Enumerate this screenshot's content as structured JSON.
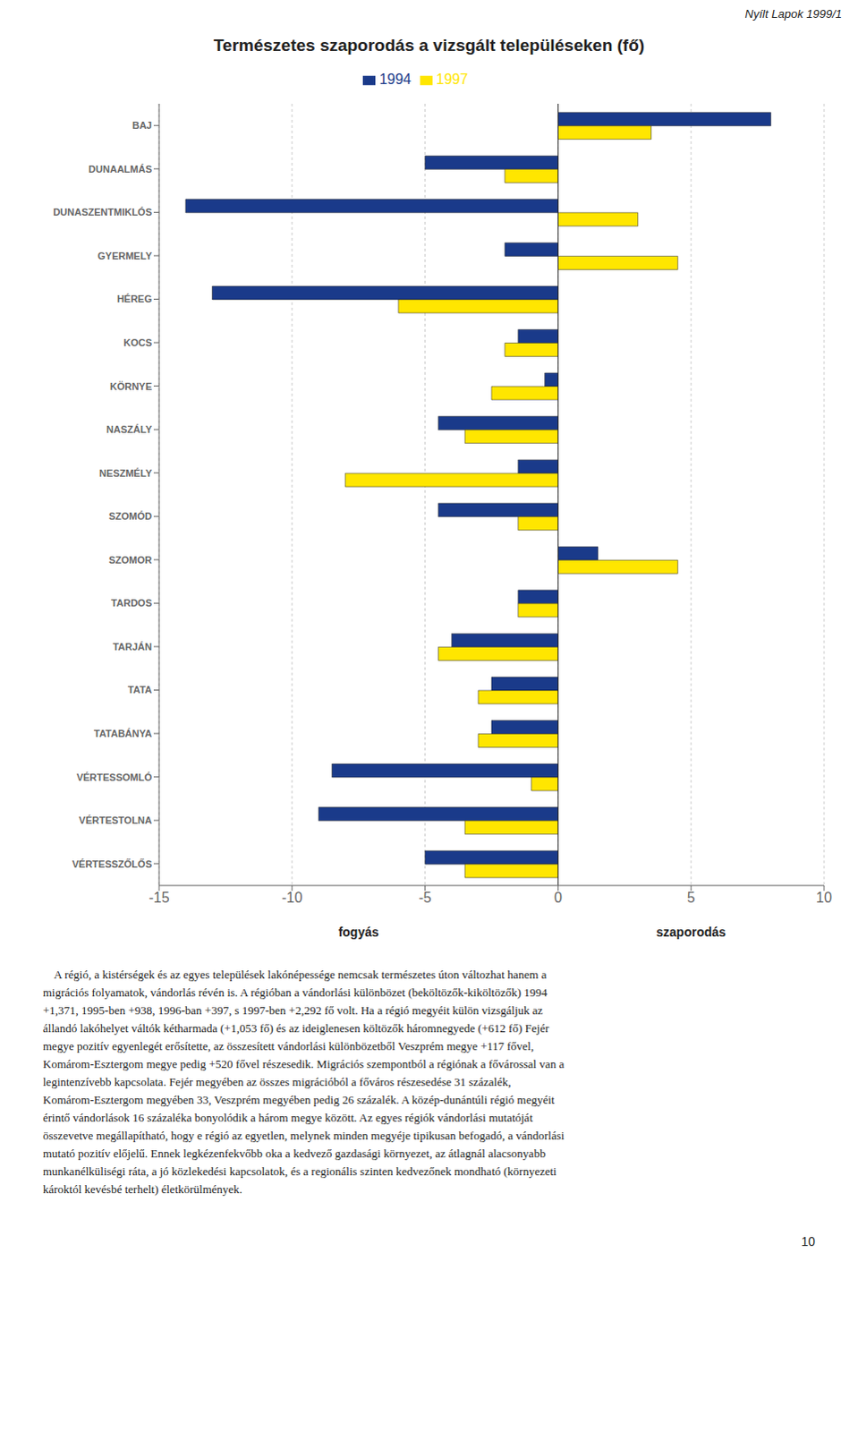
{
  "chart_data": {
    "type": "bar",
    "orientation": "horizontal",
    "title": "Természetes szaporodás a vizsgált településeken (fő)",
    "subtitle": "Nyílt Lapok 1999/1",
    "categories": [
      "BAJ",
      "DUNAALMÁS",
      "DUNASZENTMIKLÓS",
      "GYERMELY",
      "HÉREG",
      "KOCS",
      "KÖRNYE",
      "NASZÁLY",
      "NESZMÉLY",
      "SZOMÓD",
      "SZOMOR",
      "TARDOS",
      "TARJÁN",
      "TATA",
      "TATABÁNYA",
      "VÉRTESSOMLÓ",
      "VÉRTESTOLNA",
      "VÉRTESSZŐLŐS"
    ],
    "series": [
      {
        "name": "1994",
        "color": "#1a3a8a",
        "values": [
          8.0,
          -5.0,
          -14.0,
          -2.0,
          -13.0,
          -1.5,
          -0.5,
          -4.5,
          -1.5,
          -4.5,
          1.5,
          -1.5,
          -4.0,
          -2.5,
          -2.5,
          -8.5,
          -9.0,
          -5.0
        ]
      },
      {
        "name": "1997",
        "color": "#ffe600",
        "values": [
          3.5,
          -2.0,
          3.0,
          4.5,
          -6.0,
          -2.0,
          -2.5,
          -3.5,
          -8.0,
          -1.5,
          4.5,
          -1.5,
          -4.5,
          -3.0,
          -3.0,
          -1.0,
          -3.5,
          -3.5
        ]
      }
    ],
    "xlim": [
      -15,
      10
    ],
    "xticks": [
      -15,
      -10,
      -5,
      0,
      5,
      10
    ],
    "xlabel_left": "fogyás",
    "xlabel_right": "szaporodás",
    "grid": true,
    "legend": "top",
    "body_text": [
      "    A régió, a kistérségek és az egyes települések lakónépessége nemcsak természetes úton változhat hanem a",
      "migrációs folyamatok, vándorlás révén is. A régióban a vándorlási különbözet (beköltözők-kiköltözők) 1994",
      "+1,371, 1995-ben +938, 1996-ban +397, s 1997-ben +2,292 fő volt. Ha a régió megyéit külön vizsgáljuk az",
      "állandó lakóhelyet váltók kétharmada (+1,053 fő) és az ideiglenesen költözők háromnegyede (+612 fő) Fejér",
      "megye pozitív egyenlegét erősítette, az összesített vándorlási különbözetből Veszprém megye +117 fővel,",
      "Komárom-Esztergom megye pedig +520 fővel részesedik. Migrációs szempontból a régiónak a fővárossal van a",
      "legintenzívebb kapcsolata. Fejér megyében az összes migrációból a főváros részesedése 31 százalék,",
      "Komárom-Esztergom megyében 33, Veszprém megyében pedig 26 százalék. A közép-dunántúli régió megyéit",
      "érintő vándorlások 16 százaléka bonyolódik a három megye között. Az egyes régiók vándorlási mutatóját",
      "összevetve megállapítható, hogy e régió az egyetlen, melynek minden megyéje tipikusan befogadó, a vándorlási",
      "mutató pozitív előjelű. Ennek legkézenfekvőbb oka a kedvező gazdasági környezet, az átlagnál alacsonyabb",
      "munkanélküliségi ráta, a jó közlekedési kapcsolatok, és a regionális szinten kedvezőnek mondható (környezeti",
      "károktól kevésbé terhelt) életkörülmények."
    ],
    "page_number": "10"
  }
}
